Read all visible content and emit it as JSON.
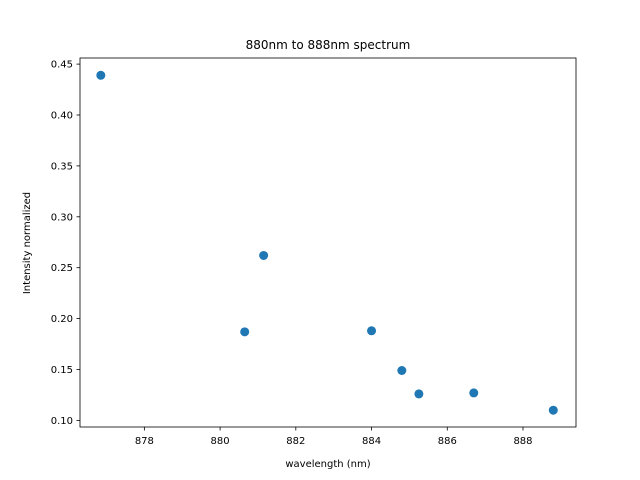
{
  "chart_data": {
    "type": "scatter",
    "title": "880nm to 888nm spectrum",
    "xlabel": "wavelength (nm)",
    "ylabel": "Intensity normalized",
    "xlim": [
      876.3,
      889.4
    ],
    "ylim": [
      0.0935,
      0.456
    ],
    "xticks": [
      878,
      880,
      882,
      884,
      886,
      888
    ],
    "xtick_labels": [
      "878",
      "880",
      "882",
      "884",
      "886",
      "888"
    ],
    "yticks": [
      0.1,
      0.15,
      0.2,
      0.25,
      0.3,
      0.35,
      0.4,
      0.45
    ],
    "ytick_labels": [
      "0.10",
      "0.15",
      "0.20",
      "0.25",
      "0.30",
      "0.35",
      "0.40",
      "0.45"
    ],
    "grid": false,
    "series": [
      {
        "color": "#1f77b4",
        "points": [
          {
            "x": 876.85,
            "y": 0.439
          },
          {
            "x": 880.65,
            "y": 0.187
          },
          {
            "x": 881.15,
            "y": 0.262
          },
          {
            "x": 884.0,
            "y": 0.188
          },
          {
            "x": 884.8,
            "y": 0.149
          },
          {
            "x": 885.25,
            "y": 0.126
          },
          {
            "x": 886.7,
            "y": 0.127
          },
          {
            "x": 888.8,
            "y": 0.11
          }
        ]
      }
    ]
  }
}
